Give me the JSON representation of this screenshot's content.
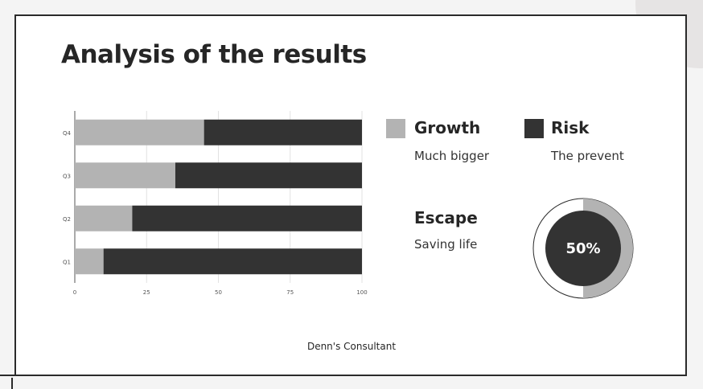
{
  "slide": {
    "title": "Analysis of the results",
    "footer": "Denn's Consultant"
  },
  "legend": {
    "growth": {
      "label": "Growth",
      "subtitle": "Much bigger",
      "color": "#b3b3b3"
    },
    "risk": {
      "label": "Risk",
      "subtitle": "The prevent",
      "color": "#333333"
    },
    "escape": {
      "label": "Escape",
      "subtitle": "Saving life"
    }
  },
  "donut": {
    "value_label": "50%",
    "fraction": 0.5,
    "fill_color": "#b3b3b3",
    "center_color": "#333333"
  },
  "chart_data": {
    "type": "bar",
    "orientation": "horizontal",
    "stacked": true,
    "categories": [
      "Q1",
      "Q2",
      "Q3",
      "Q4"
    ],
    "series": [
      {
        "name": "Growth",
        "values": [
          10,
          20,
          35,
          45
        ],
        "color": "#b3b3b3"
      },
      {
        "name": "Risk",
        "values": [
          90,
          80,
          65,
          55
        ],
        "color": "#333333"
      }
    ],
    "xlim": [
      0,
      100
    ],
    "xticks": [
      "0",
      "25",
      "50",
      "75",
      "100"
    ],
    "grid": true
  }
}
